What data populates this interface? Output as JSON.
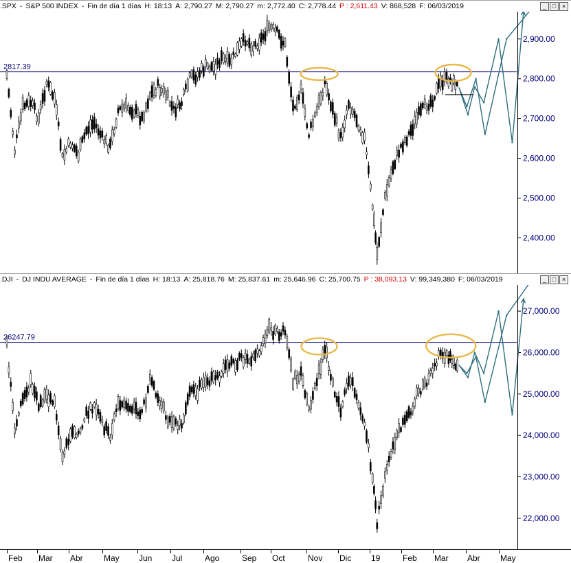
{
  "top_panel": {
    "symbol": ".SPX",
    "name": "S&P 500 INDEX",
    "period": "Fin de día 1 días",
    "h": "H: 18:13",
    "a": "A: 2,790.27",
    "m": "M: 2,790.27",
    "lo": "m: 2,772.40",
    "c": "C: 2,778.44",
    "p": "P : 2,611.43",
    "v": "V: 868,528",
    "f": "F: 06/03/2019",
    "ref_label": "2817.39"
  },
  "bottom_panel": {
    "symbol": ".DJI",
    "name": "DJ INDU AVERAGE",
    "period": "Fin de día 1 días",
    "h": "H: 18:13",
    "a": "A: 25,818.76",
    "m": "M: 25,837.61",
    "lo": "m: 25,646.96",
    "c": "C: 25,700.75",
    "p": "P : 38,093.13",
    "v": "V: 99,349,380",
    "f": "F: 06/03/2019",
    "ref_label": "26247.79"
  },
  "window_buttons": [
    "_",
    "□",
    "×"
  ],
  "x_axis_labels": [
    "Feb",
    "Mar",
    "Abr",
    "May",
    "Jun",
    "Jul",
    "Ago",
    "Sep",
    "Oct",
    "Nov",
    "Dic",
    "19",
    "Feb",
    "Mar",
    "Abr",
    "May"
  ],
  "colors": {
    "candles": "#000000",
    "reference_line": "#00007a",
    "projection": "#2e6e7e",
    "ellipse": "#e8b84a",
    "axis_text": "#00007a"
  },
  "chart_data": [
    {
      "type": "line",
      "title": ".SPX - S&P 500 INDEX",
      "ylim": [
        2330,
        2960
      ],
      "yticks": [
        2400,
        2500,
        2600,
        2700,
        2800,
        2900
      ],
      "ytick_labels": [
        "2,400.00",
        "2,500.00",
        "2,600.00",
        "2,700.00",
        "2,800.00",
        "2,900.00"
      ],
      "reference_level": 2817.39,
      "x": [
        "2018-02-01",
        "2018-02-08",
        "2018-02-15",
        "2018-02-22",
        "2018-03-01",
        "2018-03-08",
        "2018-03-15",
        "2018-03-22",
        "2018-03-29",
        "2018-04-05",
        "2018-04-12",
        "2018-04-19",
        "2018-04-26",
        "2018-05-03",
        "2018-05-10",
        "2018-05-17",
        "2018-05-24",
        "2018-05-31",
        "2018-06-07",
        "2018-06-14",
        "2018-06-21",
        "2018-06-28",
        "2018-07-05",
        "2018-07-12",
        "2018-07-19",
        "2018-07-26",
        "2018-08-02",
        "2018-08-09",
        "2018-08-16",
        "2018-08-23",
        "2018-08-30",
        "2018-09-06",
        "2018-09-13",
        "2018-09-20",
        "2018-09-27",
        "2018-10-04",
        "2018-10-11",
        "2018-10-18",
        "2018-10-25",
        "2018-11-01",
        "2018-11-08",
        "2018-11-15",
        "2018-11-22",
        "2018-11-29",
        "2018-12-06",
        "2018-12-13",
        "2018-12-20",
        "2018-12-24",
        "2018-12-31",
        "2019-01-07",
        "2019-01-14",
        "2019-01-21",
        "2019-01-28",
        "2019-02-04",
        "2019-02-11",
        "2019-02-18",
        "2019-02-25",
        "2019-03-06"
      ],
      "values": [
        2810,
        2620,
        2730,
        2740,
        2700,
        2790,
        2750,
        2600,
        2640,
        2610,
        2670,
        2690,
        2650,
        2630,
        2720,
        2730,
        2720,
        2700,
        2760,
        2780,
        2760,
        2720,
        2740,
        2800,
        2810,
        2830,
        2830,
        2850,
        2840,
        2870,
        2900,
        2880,
        2900,
        2930,
        2915,
        2885,
        2730,
        2770,
        2660,
        2720,
        2790,
        2720,
        2650,
        2740,
        2700,
        2650,
        2480,
        2360,
        2500,
        2580,
        2630,
        2660,
        2700,
        2730,
        2750,
        2790,
        2800,
        2780
      ],
      "projections": [
        {
          "x": [
            "2019-03-06",
            "2019-03-13",
            "2019-03-21",
            "2019-03-29",
            "2019-04-17",
            "2019-05-13"
          ],
          "values": [
            2778,
            2730,
            2800,
            2660,
            2900,
            2990
          ]
        },
        {
          "x": [
            "2019-03-06",
            "2019-03-14",
            "2019-03-20",
            "2019-03-28",
            "2019-04-10",
            "2019-04-22",
            "2019-05-02"
          ],
          "values": [
            2778,
            2710,
            2780,
            2740,
            2900,
            2640,
            2970
          ]
        }
      ]
    },
    {
      "type": "line",
      "title": ".DJI - DJ INDU AVERAGE",
      "ylim": [
        21500,
        27550
      ],
      "yticks": [
        22000,
        23000,
        24000,
        25000,
        26000,
        27000
      ],
      "ytick_labels": [
        "22,000.00",
        "23,000.00",
        "24,000.00",
        "25,000.00",
        "26,000.00",
        "27,000.00"
      ],
      "reference_level": 26247.79,
      "x": [
        "2018-02-01",
        "2018-02-08",
        "2018-02-15",
        "2018-02-22",
        "2018-03-01",
        "2018-03-08",
        "2018-03-15",
        "2018-03-22",
        "2018-03-29",
        "2018-04-05",
        "2018-04-12",
        "2018-04-19",
        "2018-04-26",
        "2018-05-03",
        "2018-05-10",
        "2018-05-17",
        "2018-05-24",
        "2018-05-31",
        "2018-06-07",
        "2018-06-14",
        "2018-06-21",
        "2018-06-28",
        "2018-07-05",
        "2018-07-12",
        "2018-07-19",
        "2018-07-26",
        "2018-08-02",
        "2018-08-09",
        "2018-08-16",
        "2018-08-23",
        "2018-08-30",
        "2018-09-06",
        "2018-09-13",
        "2018-09-20",
        "2018-09-27",
        "2018-10-04",
        "2018-10-11",
        "2018-10-18",
        "2018-10-25",
        "2018-11-01",
        "2018-11-08",
        "2018-11-15",
        "2018-11-22",
        "2018-11-29",
        "2018-12-06",
        "2018-12-13",
        "2018-12-20",
        "2018-12-24",
        "2018-12-31",
        "2019-01-07",
        "2019-01-14",
        "2019-01-21",
        "2019-01-28",
        "2019-02-04",
        "2019-02-11",
        "2019-02-18",
        "2019-02-25",
        "2019-03-06"
      ],
      "values": [
        26150,
        24100,
        24900,
        25300,
        24700,
        25000,
        24800,
        23500,
        24100,
        24000,
        24500,
        24700,
        24300,
        24000,
        24800,
        24700,
        24700,
        24500,
        25300,
        24900,
        24500,
        24200,
        24300,
        25000,
        25100,
        25400,
        25300,
        25500,
        25700,
        25800,
        25900,
        25900,
        26100,
        26600,
        26450,
        26500,
        25300,
        25500,
        24700,
        25300,
        26100,
        25300,
        24500,
        25400,
        25000,
        24300,
        23000,
        21900,
        23000,
        23700,
        24200,
        24500,
        25000,
        25200,
        25500,
        26000,
        25900,
        25700
      ],
      "projections": [
        {
          "x": [
            "2019-03-06",
            "2019-03-13",
            "2019-03-21",
            "2019-03-29",
            "2019-04-17",
            "2019-05-13"
          ],
          "values": [
            25700,
            25500,
            25900,
            24800,
            26900,
            27900
          ]
        },
        {
          "x": [
            "2019-03-06",
            "2019-03-14",
            "2019-03-20",
            "2019-03-28",
            "2019-04-10",
            "2019-04-22",
            "2019-05-02"
          ],
          "values": [
            25700,
            25400,
            26000,
            25500,
            27000,
            24500,
            27300
          ]
        }
      ]
    }
  ]
}
